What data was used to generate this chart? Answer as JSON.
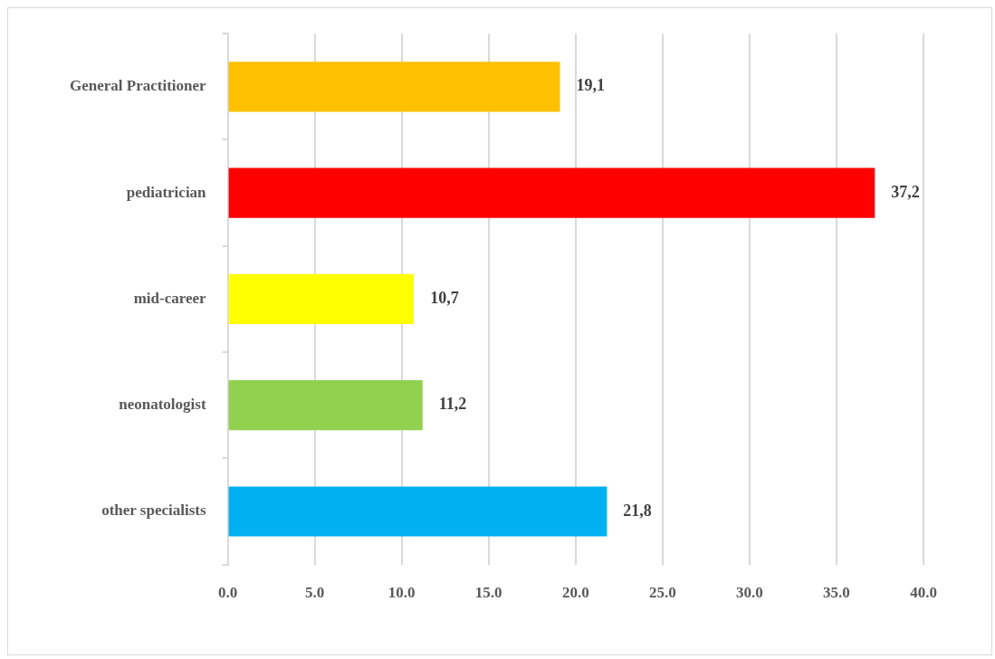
{
  "chart_data": {
    "type": "bar",
    "orientation": "horizontal",
    "categories": [
      "General Practitioner",
      "pediatrician",
      "mid-career",
      "neonatologist",
      "other specialists"
    ],
    "values": [
      19.1,
      37.2,
      10.7,
      11.2,
      21.8
    ],
    "colors": [
      "#ffc000",
      "#ff0000",
      "#ffff00",
      "#92d050",
      "#00b0f0"
    ],
    "value_labels": [
      "19,1",
      "37,2",
      "10,7",
      "11,2",
      "21,8"
    ],
    "xlim": [
      0,
      40
    ],
    "xticks": [
      {
        "value": 0,
        "label": "0.0"
      },
      {
        "value": 5,
        "label": "5.0"
      },
      {
        "value": 10,
        "label": "10.0"
      },
      {
        "value": 15,
        "label": "15.0"
      },
      {
        "value": 20,
        "label": "20.0"
      },
      {
        "value": 25,
        "label": "25.0"
      },
      {
        "value": 30,
        "label": "30.0"
      },
      {
        "value": 35,
        "label": "35.0"
      },
      {
        "value": 40,
        "label": "40.0"
      }
    ],
    "grid": "x",
    "legend": false
  }
}
